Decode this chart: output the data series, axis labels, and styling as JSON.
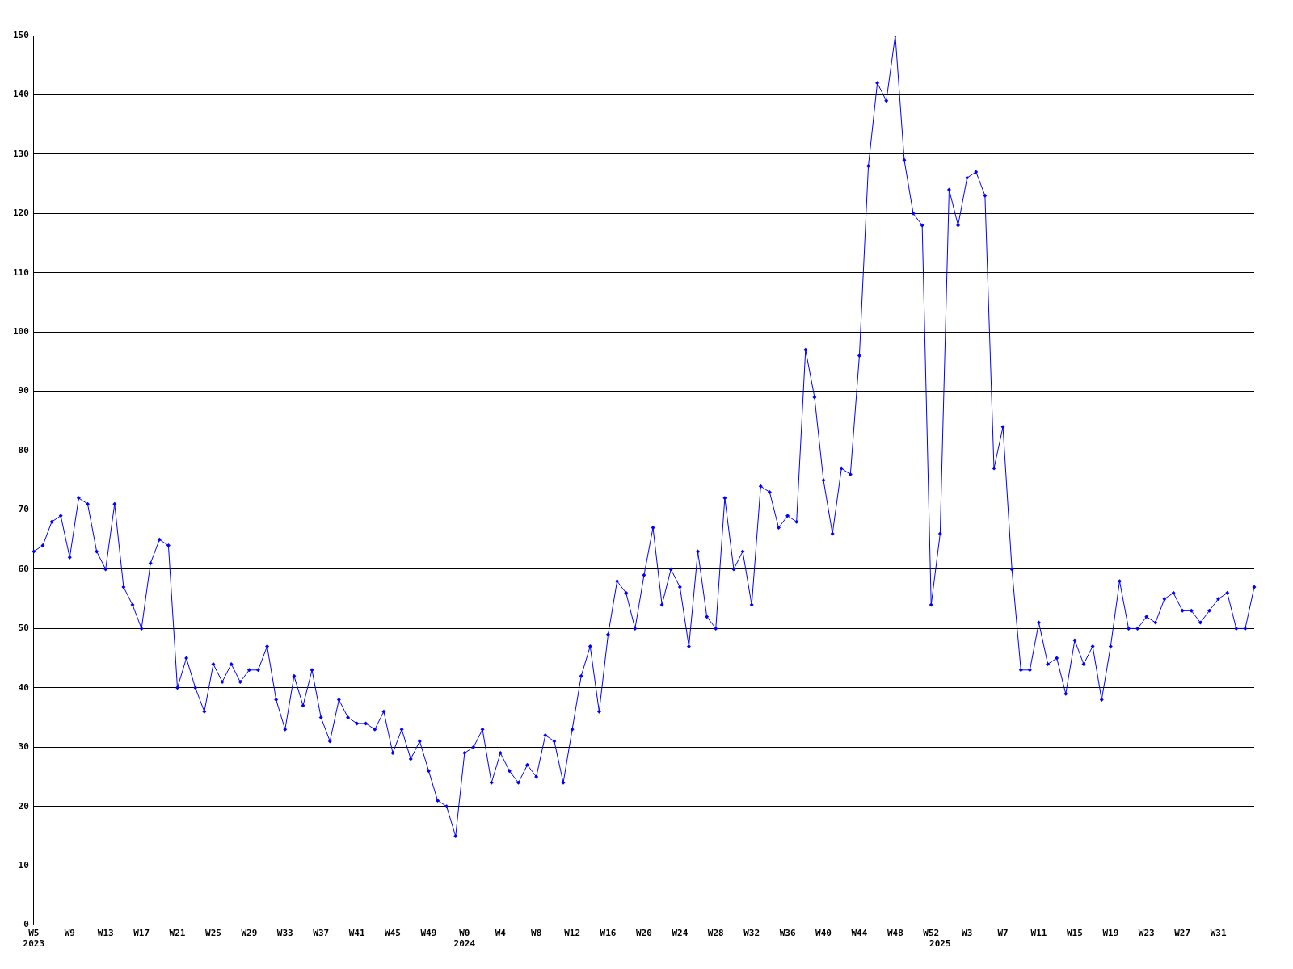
{
  "chart_data": {
    "type": "line",
    "categories": [
      "W5\n2023",
      null,
      null,
      null,
      "W9",
      null,
      null,
      null,
      "W13",
      null,
      null,
      null,
      "W17",
      null,
      null,
      null,
      "W21",
      null,
      null,
      null,
      "W25",
      null,
      null,
      null,
      "W29",
      null,
      null,
      null,
      "W33",
      null,
      null,
      null,
      "W37",
      null,
      null,
      null,
      "W41",
      null,
      null,
      null,
      "W45",
      null,
      null,
      null,
      "W49",
      null,
      null,
      null,
      "W0\n2024",
      null,
      null,
      null,
      "W4",
      null,
      null,
      null,
      "W8",
      null,
      null,
      null,
      "W12",
      null,
      null,
      null,
      "W16",
      null,
      null,
      null,
      "W20",
      null,
      null,
      null,
      "W24",
      null,
      null,
      null,
      "W28",
      null,
      null,
      null,
      "W32",
      null,
      null,
      null,
      "W36",
      null,
      null,
      null,
      "W40",
      null,
      null,
      null,
      "W44",
      null,
      null,
      null,
      "W48",
      null,
      null,
      null,
      "W52",
      "\n2025",
      null,
      null,
      "W3",
      null,
      null,
      null,
      "W7",
      null,
      null,
      null,
      "W11",
      null,
      null,
      null,
      "W15",
      null,
      null,
      null,
      "W19",
      null,
      null,
      null,
      "W23",
      null,
      null,
      null,
      "W27",
      null,
      null,
      null,
      "W31",
      null,
      null,
      null,
      null
    ],
    "series": [
      {
        "color": "#0000ff",
        "values": [
          63,
          64,
          68,
          69,
          62,
          72,
          71,
          63,
          60,
          71,
          57,
          54,
          50,
          61,
          65,
          64,
          40,
          45,
          40,
          36,
          44,
          41,
          44,
          41,
          43,
          43,
          47,
          38,
          33,
          42,
          37,
          43,
          35,
          31,
          38,
          35,
          34,
          34,
          33,
          36,
          29,
          33,
          28,
          31,
          26,
          21,
          20,
          15,
          29,
          30,
          33,
          24,
          29,
          26,
          24,
          27,
          25,
          32,
          31,
          24,
          33,
          42,
          47,
          36,
          49,
          58,
          56,
          50,
          59,
          67,
          54,
          60,
          57,
          47,
          63,
          52,
          50,
          72,
          60,
          63,
          54,
          74,
          73,
          67,
          69,
          68,
          97,
          89,
          75,
          66,
          77,
          76,
          96,
          128,
          142,
          139,
          150,
          129,
          120,
          118,
          54,
          66,
          124,
          118,
          126,
          127,
          123,
          77,
          84,
          60,
          43,
          43,
          51,
          44,
          45,
          39,
          48,
          44,
          47,
          38,
          47,
          58,
          50,
          50,
          52,
          51,
          55,
          56,
          53,
          53,
          51,
          53,
          55,
          56,
          50,
          50,
          57
        ]
      }
    ],
    "ylim": [
      0,
      150
    ],
    "yticks": [
      0,
      10,
      20,
      30,
      40,
      50,
      60,
      70,
      80,
      90,
      100,
      110,
      120,
      130,
      140,
      150
    ],
    "grid": "y",
    "legend": false,
    "marker": "diamond",
    "line_style": "solid"
  }
}
